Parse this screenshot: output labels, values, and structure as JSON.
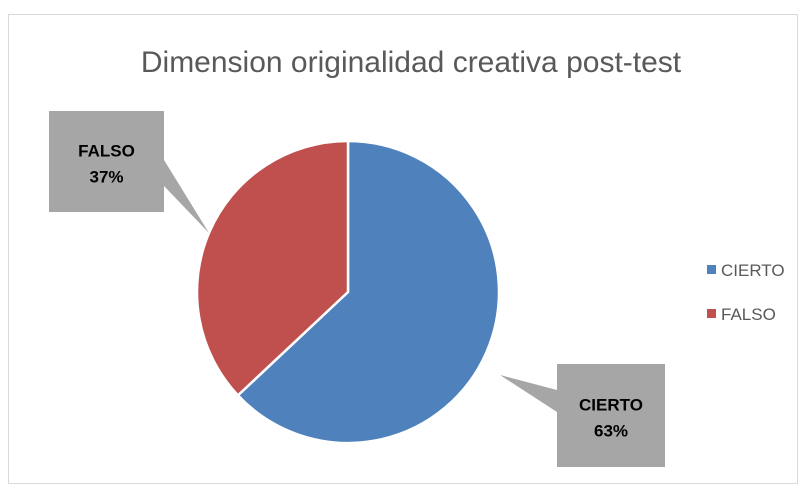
{
  "chart_data": {
    "type": "pie",
    "title": "Dimension originalidad creativa post-test",
    "categories": [
      "CIERTO",
      "FALSO"
    ],
    "values": [
      63,
      37
    ],
    "unit": "%",
    "colors": [
      "#4f81bd",
      "#c0504d"
    ],
    "data_labels": [
      {
        "category": "CIERTO",
        "percent": "63%"
      },
      {
        "category": "FALSO",
        "percent": "37%"
      }
    ],
    "legend": {
      "position": "right",
      "entries": [
        "CIERTO",
        "FALSO"
      ]
    },
    "callout_color": "#a6a6a6"
  }
}
